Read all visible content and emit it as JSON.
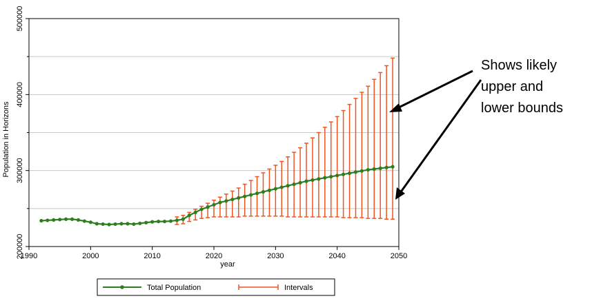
{
  "chart_data": {
    "type": "line",
    "title": "",
    "xlabel": "year",
    "ylabel": "Population in Horizons",
    "xlim": [
      1990,
      2050
    ],
    "ylim": [
      200000,
      500000
    ],
    "xticks": [
      "1990",
      "2000",
      "2010",
      "2020",
      "2030",
      "2040",
      "2050"
    ],
    "yticks": [
      "200000",
      "300000",
      "400000",
      "500000"
    ],
    "grid": true,
    "legend_position": "bottom",
    "series": [
      {
        "name": "Total Population",
        "color": "#2e7d1e",
        "x": [
          1992,
          1993,
          1994,
          1995,
          1996,
          1997,
          1998,
          1999,
          2000,
          2001,
          2002,
          2003,
          2004,
          2005,
          2006,
          2007,
          2008,
          2009,
          2010,
          2011,
          2012,
          2013,
          2014,
          2015,
          2016,
          2017,
          2018,
          2019,
          2020,
          2021,
          2022,
          2023,
          2024,
          2025,
          2026,
          2027,
          2028,
          2029,
          2030,
          2031,
          2032,
          2033,
          2034,
          2035,
          2036,
          2037,
          2038,
          2039,
          2040,
          2041,
          2042,
          2043,
          2044,
          2045,
          2046,
          2047,
          2048,
          2049
        ],
        "y": [
          234000,
          234500,
          235000,
          235500,
          236000,
          236000,
          235000,
          233500,
          232000,
          230000,
          229500,
          229000,
          229500,
          230000,
          230000,
          229500,
          230500,
          231500,
          232500,
          233000,
          233000,
          233500,
          234500,
          236000,
          241000,
          245000,
          249000,
          252000,
          255000,
          258000,
          260000,
          262000,
          264000,
          266000,
          268000,
          270000,
          272000,
          274000,
          276000,
          278000,
          280000,
          282000,
          284000,
          286000,
          287500,
          289000,
          290500,
          292000,
          293500,
          295000,
          296500,
          298000,
          299500,
          301000,
          302000,
          303000,
          304000,
          305000
        ]
      },
      {
        "name": "Intervals",
        "color": "#f0541e",
        "x": [
          2014,
          2015,
          2016,
          2017,
          2018,
          2019,
          2020,
          2021,
          2022,
          2023,
          2024,
          2025,
          2026,
          2027,
          2028,
          2029,
          2030,
          2031,
          2032,
          2033,
          2034,
          2035,
          2036,
          2037,
          2038,
          2039,
          2040,
          2041,
          2042,
          2043,
          2044,
          2045,
          2046,
          2047,
          2048,
          2049
        ],
        "low": [
          229000,
          230000,
          233000,
          235000,
          237000,
          238000,
          239000,
          239000,
          239000,
          239000,
          239000,
          240000,
          240000,
          240000,
          240000,
          240000,
          240000,
          240000,
          239000,
          239000,
          239000,
          239000,
          239000,
          239000,
          239000,
          239000,
          239000,
          238000,
          238000,
          238000,
          238000,
          237000,
          237000,
          237000,
          236000,
          236000
        ],
        "high": [
          239000,
          241000,
          245000,
          249000,
          253000,
          257000,
          261000,
          265000,
          269000,
          273000,
          277000,
          282000,
          287000,
          292000,
          297000,
          302000,
          307000,
          312000,
          318000,
          324000,
          330000,
          336000,
          343000,
          350000,
          357000,
          364000,
          371000,
          379000,
          387000,
          395000,
          403000,
          411000,
          420000,
          429000,
          438000,
          448000
        ]
      }
    ]
  },
  "annotation": {
    "lines": [
      "Shows likely",
      "upper  and",
      "lower  bounds"
    ]
  },
  "colors": {
    "total_population": "#2e7d1e",
    "intervals": "#f0541e",
    "arrow": "#000000",
    "grid": "#c8c8c8"
  }
}
